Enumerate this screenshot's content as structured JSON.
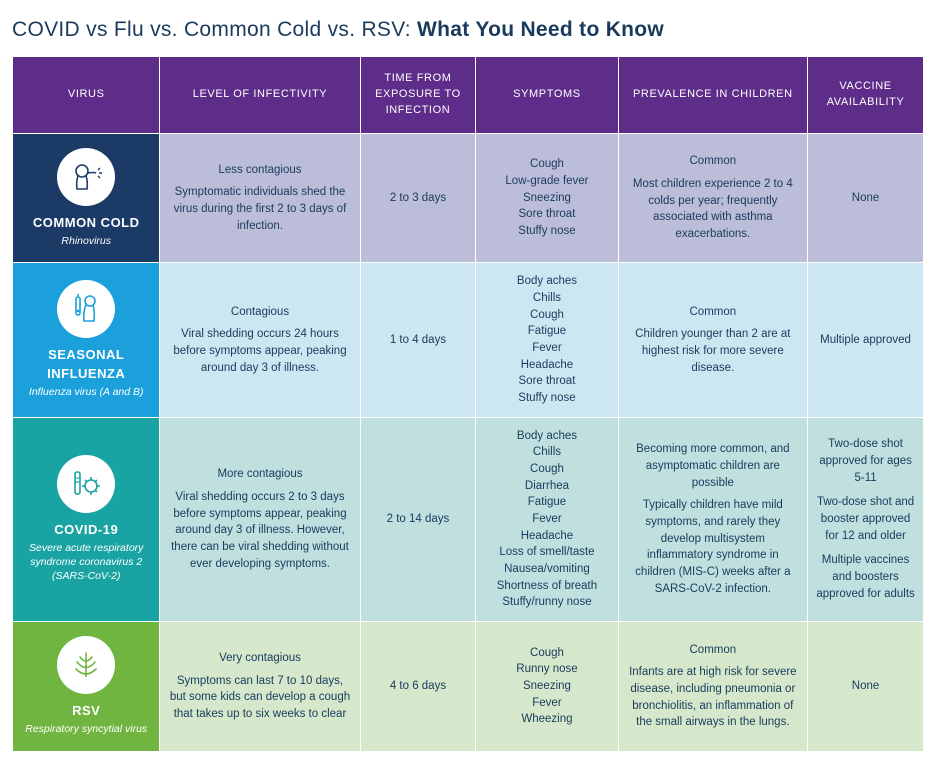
{
  "title_plain": "COVID vs Flu vs. Common Cold vs. RSV: ",
  "title_bold": "What You Need to Know",
  "headers": {
    "virus": "VIRUS",
    "infectivity": "LEVEL OF INFECTIVITY",
    "time": "TIME FROM EXPOSURE TO INFECTION",
    "symptoms": "SYMPTOMS",
    "prevalence": "PREVALENCE IN CHILDREN",
    "vaccine": "VACCINE AVAILABILITY"
  },
  "colors": {
    "header_bg": "#5e2d89",
    "r0_virus_bg": "#1b3a66",
    "r0_cell_bg": "#bcbdd9",
    "r1_virus_bg": "#1ca0dc",
    "r1_cell_bg": "#cde7f2",
    "r2_virus_bg": "#1aa3a3",
    "r2_cell_bg": "#bfe0df",
    "r3_virus_bg": "#6fb53f",
    "r3_cell_bg": "#d5e8cb"
  },
  "rows": [
    {
      "name": "COMMON COLD",
      "sub": "Rhinovirus",
      "infect_lead": "Less contagious",
      "infect_body": "Symptomatic individuals shed the virus during the first 2 to 3 days of infection.",
      "time": "2 to 3 days",
      "symptoms": "Cough\nLow-grade fever\nSneezing\nSore throat\nStuffy nose",
      "prev_lead": "Common",
      "prev_body": "Most children experience 2 to 4 colds per year; frequently associated with asthma exacerbations.",
      "vaccine": "None"
    },
    {
      "name": "SEASONAL INFLUENZA",
      "sub": "Influenza virus (A and B)",
      "infect_lead": "Contagious",
      "infect_body": "Viral shedding occurs 24 hours before symptoms appear, peaking around day 3 of illness.",
      "time": "1 to 4 days",
      "symptoms": "Body aches\nChills\nCough\nFatigue\nFever\nHeadache\nSore throat\nStuffy nose",
      "prev_lead": "Common",
      "prev_body": "Children younger than 2 are at highest risk for more severe disease.",
      "vaccine": "Multiple approved"
    },
    {
      "name": "COVID-19",
      "sub": "Severe acute respiratory syndrome coronavirus 2 (SARS-CoV-2)",
      "infect_lead": "More contagious",
      "infect_body": "Viral shedding occurs 2 to 3 days before symptoms appear, peaking around day 3 of illness. However, there can be viral shedding without ever developing symptoms.",
      "time": "2 to 14 days",
      "symptoms": "Body aches\nChills\nCough\nDiarrhea\nFatigue\nFever\nHeadache\nLoss of smell/taste\nNausea/vomiting\nShortness of breath\nStuffy/runny nose",
      "prev_lead": "Becoming more common, and asymptomatic children are possible",
      "prev_body": "Typically children have mild symptoms, and rarely they develop multisystem inflammatory syndrome in children (MIS-C) weeks after a SARS-CoV-2 infection.",
      "vaccine": "Two-dose shot approved for ages 5-11\n\nTwo-dose shot and booster approved for 12 and older\n\nMultiple vaccines and boosters approved for adults"
    },
    {
      "name": "RSV",
      "sub": "Respiratory syncytial virus",
      "infect_lead": "Very contagious",
      "infect_body": "Symptoms can last 7 to 10 days, but some kids can develop a cough that takes up to six weeks to clear",
      "time": "4 to 6 days",
      "symptoms": "Cough\nRunny nose\nSneezing\nFever\nWheezing",
      "prev_lead": "Common",
      "prev_body": "Infants are at high risk for severe disease, including pneumonia or bronchiolitis, an inflammation of the small airways in the lungs.",
      "vaccine": "None"
    }
  ]
}
